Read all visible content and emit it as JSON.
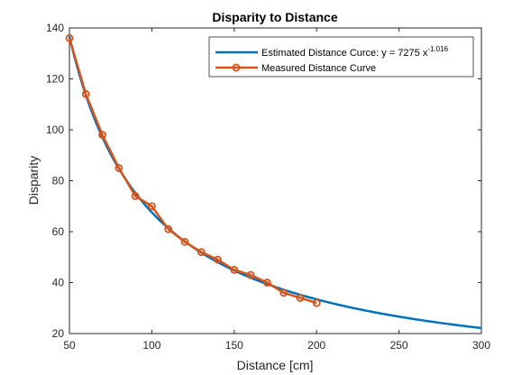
{
  "chart_data": {
    "type": "line",
    "title": "Disparity to Distance",
    "xlabel": "Distance [cm]",
    "ylabel": "Disparity",
    "xlim": [
      50,
      300
    ],
    "ylim": [
      20,
      140
    ],
    "xticks": [
      "50",
      "100",
      "150",
      "200",
      "250",
      "300"
    ],
    "yticks": [
      "20",
      "40",
      "60",
      "80",
      "100",
      "120",
      "140"
    ],
    "grid": false,
    "legend_position": "top-right",
    "series": [
      {
        "name": "Estimated Distance Curce: y = 7275 x",
        "name_superscript": "-1.016",
        "kind": "fitted-curve",
        "coefficient": 7275,
        "exponent": -1.016,
        "x_range": [
          50,
          300
        ],
        "color": "#0072BD"
      },
      {
        "name": "Measured Distance Curve",
        "kind": "measured",
        "marker": "circle",
        "color": "#D95319",
        "x": [
          50,
          60,
          70,
          80,
          90,
          100,
          110,
          120,
          130,
          140,
          150,
          160,
          170,
          180,
          190,
          200
        ],
        "y": [
          136,
          114,
          98,
          85,
          74,
          70,
          61,
          56,
          52,
          49,
          45,
          43,
          40,
          36,
          34,
          32
        ]
      }
    ]
  }
}
